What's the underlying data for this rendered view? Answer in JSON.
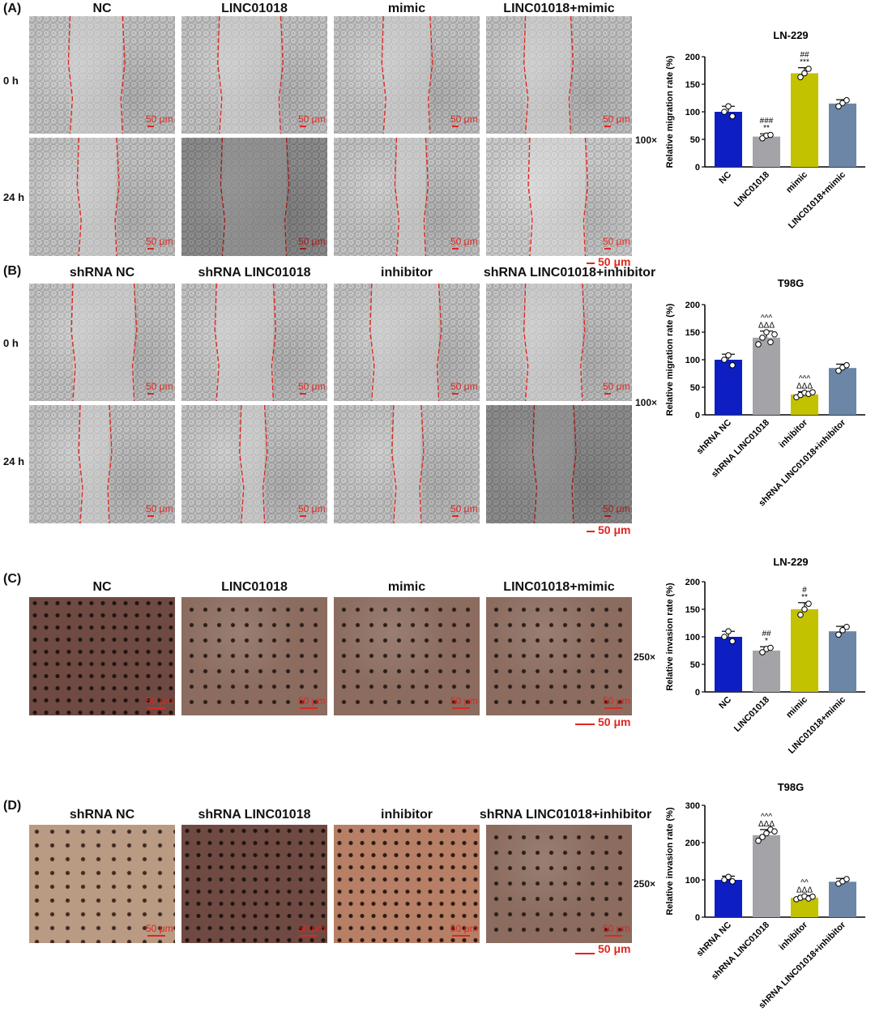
{
  "panels": [
    {
      "label": "(A)",
      "columns": [
        "NC",
        "LINC01018",
        "mimic",
        "LINC01018+mimic"
      ],
      "rows": [
        "0 h",
        "24 h"
      ],
      "magnification": "100×",
      "scale_label": "50 μm",
      "scalebar_label": "50 μm"
    },
    {
      "label": "(B)",
      "columns": [
        "shRNA NC",
        "shRNA LINC01018",
        "inhibitor",
        "shRNA LINC01018+inhibitor"
      ],
      "rows": [
        "0 h",
        "24 h"
      ],
      "magnification": "100×",
      "scale_label": "50 μm",
      "scalebar_label": "50 μm"
    },
    {
      "label": "(C)",
      "columns": [
        "NC",
        "LINC01018",
        "mimic",
        "LINC01018+mimic"
      ],
      "magnification": "250×",
      "scale_label": "50 μm",
      "scalebar_label": "50 μm"
    },
    {
      "label": "(D)",
      "columns": [
        "shRNA NC",
        "shRNA LINC01018",
        "inhibitor",
        "shRNA LINC01018+inhibitor"
      ],
      "magnification": "250×",
      "scale_label": "50 μm",
      "scalebar_label": "50 μm"
    }
  ],
  "chart_data": [
    {
      "type": "bar",
      "title": "LN-229",
      "ylabel": "Relative migration rate (%)",
      "ylim": [
        0,
        200
      ],
      "yticks": [
        0,
        50,
        100,
        150,
        200
      ],
      "categories": [
        "NC",
        "LINC01018",
        "mimic",
        "LINC01018+mimic"
      ],
      "values": [
        100,
        55,
        170,
        115
      ],
      "errors": [
        10,
        5,
        10,
        7
      ],
      "points": [
        [
          100,
          110,
          92
        ],
        [
          52,
          57,
          58
        ],
        [
          163,
          170,
          178
        ],
        [
          110,
          116,
          121
        ]
      ],
      "colors": [
        "#0d1fc2",
        "#a3a3a8",
        "#c2c200",
        "#6b86a6"
      ],
      "annotations": [
        "",
        "###\n**",
        "##\n***",
        ""
      ],
      "markers": "circle"
    },
    {
      "type": "bar",
      "title": "T98G",
      "ylabel": "Relative migration rate (%)",
      "ylim": [
        0,
        200
      ],
      "yticks": [
        0,
        50,
        100,
        150,
        200
      ],
      "categories": [
        "shRNA NC",
        "shRNA LINC01018",
        "inhibitor",
        "shRNA LINC01018+inhibitor"
      ],
      "values": [
        100,
        140,
        37,
        85
      ],
      "errors": [
        10,
        12,
        5,
        7
      ],
      "points": [
        [
          100,
          108,
          90
        ],
        [
          128,
          140,
          150,
          132,
          146
        ],
        [
          32,
          36,
          40,
          38,
          41
        ],
        [
          80,
          86,
          90
        ]
      ],
      "colors": [
        "#0d1fc2",
        "#a3a3a8",
        "#c2c200",
        "#6b86a6"
      ],
      "annotations": [
        "",
        "^^^\nΔΔΔ",
        "^^^\nΔΔΔ",
        ""
      ],
      "markers": "circle"
    },
    {
      "type": "bar",
      "title": "LN-229",
      "ylabel": "Relative invasion rate (%)",
      "ylim": [
        0,
        200
      ],
      "yticks": [
        0,
        50,
        100,
        150,
        200
      ],
      "categories": [
        "NC",
        "LINC01018",
        "mimic",
        "LINC01018+mimic"
      ],
      "values": [
        100,
        75,
        150,
        110
      ],
      "errors": [
        10,
        7,
        12,
        9
      ],
      "points": [
        [
          100,
          110,
          92
        ],
        [
          72,
          78,
          80
        ],
        [
          140,
          150,
          160
        ],
        [
          104,
          112,
          118
        ]
      ],
      "colors": [
        "#0d1fc2",
        "#a3a3a8",
        "#c2c200",
        "#6b86a6"
      ],
      "annotations": [
        "",
        "##\n*",
        "#\n**",
        ""
      ],
      "markers": "circle"
    },
    {
      "type": "bar",
      "title": "T98G",
      "ylabel": "Relative invasion rate (%)",
      "ylim": [
        0,
        300
      ],
      "yticks": [
        0,
        100,
        200,
        300
      ],
      "categories": [
        "shRNA NC",
        "shRNA LINC01018",
        "inhibitor",
        "shRNA LINC01018+inhibitor"
      ],
      "values": [
        100,
        220,
        52,
        95
      ],
      "errors": [
        10,
        15,
        6,
        9
      ],
      "points": [
        [
          100,
          108,
          96
        ],
        [
          205,
          215,
          225,
          235,
          230
        ],
        [
          48,
          52,
          56,
          50,
          55
        ],
        [
          90,
          96,
          102
        ]
      ],
      "colors": [
        "#0d1fc2",
        "#a3a3a8",
        "#c2c200",
        "#6b86a6"
      ],
      "annotations": [
        "",
        "^^^\nΔΔΔ",
        "^^\nΔΔΔ",
        ""
      ],
      "markers": "circle"
    }
  ]
}
